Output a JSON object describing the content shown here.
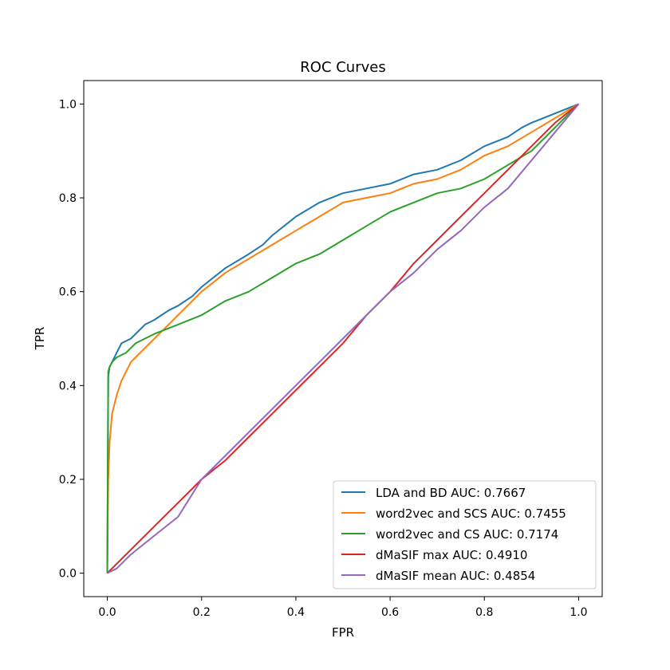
{
  "chart_data": {
    "type": "line",
    "title": "ROC Curves",
    "xlabel": "FPR",
    "ylabel": "TPR",
    "xlim": [
      -0.05,
      1.05
    ],
    "ylim": [
      -0.05,
      1.05
    ],
    "xticks": [
      "0.0",
      "0.2",
      "0.4",
      "0.6",
      "0.8",
      "1.0"
    ],
    "yticks": [
      "0.0",
      "0.2",
      "0.4",
      "0.6",
      "0.8",
      "1.0"
    ],
    "grid": false,
    "legend_position": "lower-right",
    "series": [
      {
        "name": "LDA and BD AUC:  0.7667",
        "color": "#1f77b4",
        "x": [
          0,
          0.002,
          0.005,
          0.01,
          0.02,
          0.03,
          0.05,
          0.08,
          0.1,
          0.13,
          0.15,
          0.18,
          0.2,
          0.25,
          0.3,
          0.33,
          0.35,
          0.4,
          0.45,
          0.5,
          0.55,
          0.6,
          0.65,
          0.7,
          0.75,
          0.8,
          0.85,
          0.88,
          0.9,
          1.0
        ],
        "y": [
          0,
          0.42,
          0.44,
          0.45,
          0.47,
          0.49,
          0.5,
          0.53,
          0.54,
          0.56,
          0.57,
          0.59,
          0.61,
          0.65,
          0.68,
          0.7,
          0.72,
          0.76,
          0.79,
          0.81,
          0.82,
          0.83,
          0.85,
          0.86,
          0.88,
          0.91,
          0.93,
          0.95,
          0.96,
          1.0
        ]
      },
      {
        "name": "word2vec and SCS AUC:  0.7455",
        "color": "#ff7f0e",
        "x": [
          0,
          0.002,
          0.005,
          0.01,
          0.02,
          0.03,
          0.05,
          0.07,
          0.1,
          0.13,
          0.15,
          0.2,
          0.25,
          0.3,
          0.35,
          0.4,
          0.45,
          0.5,
          0.55,
          0.6,
          0.65,
          0.7,
          0.75,
          0.8,
          0.85,
          0.9,
          1.0
        ],
        "y": [
          0,
          0.2,
          0.28,
          0.34,
          0.38,
          0.41,
          0.45,
          0.47,
          0.5,
          0.53,
          0.55,
          0.6,
          0.64,
          0.67,
          0.7,
          0.73,
          0.76,
          0.79,
          0.8,
          0.81,
          0.83,
          0.84,
          0.86,
          0.89,
          0.91,
          0.94,
          1.0
        ]
      },
      {
        "name": "word2vec and CS AUC:  0.7174",
        "color": "#2ca02c",
        "x": [
          0,
          0.002,
          0.005,
          0.01,
          0.02,
          0.04,
          0.06,
          0.08,
          0.1,
          0.15,
          0.2,
          0.25,
          0.3,
          0.35,
          0.4,
          0.45,
          0.5,
          0.55,
          0.6,
          0.65,
          0.7,
          0.75,
          0.8,
          0.85,
          0.9,
          0.95,
          1.0
        ],
        "y": [
          0,
          0.43,
          0.44,
          0.45,
          0.46,
          0.47,
          0.49,
          0.5,
          0.51,
          0.53,
          0.55,
          0.58,
          0.6,
          0.63,
          0.66,
          0.68,
          0.71,
          0.74,
          0.77,
          0.79,
          0.81,
          0.82,
          0.84,
          0.87,
          0.9,
          0.95,
          1.0
        ]
      },
      {
        "name": "dMaSIF max AUC:  0.4910",
        "color": "#d62728",
        "x": [
          0,
          0.02,
          0.05,
          0.1,
          0.15,
          0.2,
          0.25,
          0.3,
          0.35,
          0.4,
          0.45,
          0.5,
          0.55,
          0.6,
          0.65,
          0.7,
          0.75,
          0.8,
          0.85,
          0.9,
          0.95,
          1.0
        ],
        "y": [
          0,
          0.02,
          0.05,
          0.1,
          0.15,
          0.2,
          0.24,
          0.29,
          0.34,
          0.39,
          0.44,
          0.49,
          0.55,
          0.6,
          0.66,
          0.71,
          0.76,
          0.81,
          0.86,
          0.91,
          0.96,
          1.0
        ]
      },
      {
        "name": "dMaSIF mean AUC:  0.4854",
        "color": "#9467bd",
        "x": [
          0,
          0.02,
          0.05,
          0.1,
          0.15,
          0.2,
          0.25,
          0.3,
          0.35,
          0.4,
          0.45,
          0.5,
          0.55,
          0.6,
          0.65,
          0.7,
          0.75,
          0.8,
          0.85,
          0.9,
          0.95,
          1.0
        ],
        "y": [
          0,
          0.01,
          0.04,
          0.08,
          0.12,
          0.2,
          0.25,
          0.3,
          0.35,
          0.4,
          0.45,
          0.5,
          0.55,
          0.6,
          0.64,
          0.69,
          0.73,
          0.78,
          0.82,
          0.88,
          0.94,
          1.0
        ]
      }
    ]
  }
}
